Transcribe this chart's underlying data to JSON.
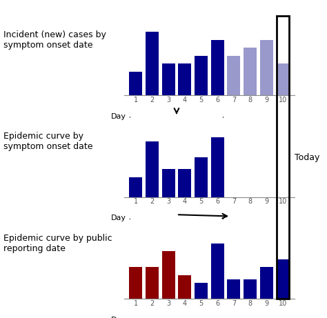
{
  "chart1": {
    "label": "Incident (new) cases by\nsymptom onset date",
    "days": [
      1,
      2,
      3,
      4,
      5,
      6,
      7,
      8,
      9,
      10
    ],
    "values": [
      3.0,
      8.0,
      4.0,
      4.0,
      5.0,
      7.0,
      5.0,
      6.0,
      7.0,
      4.0
    ],
    "dark_until": 6,
    "color_dark": "#00008B",
    "color_light": "#9999CC"
  },
  "chart2": {
    "label": "Epidemic curve by\nsymptom onset date",
    "days": [
      1,
      2,
      3,
      4,
      5,
      6,
      7,
      8,
      9,
      10
    ],
    "values": [
      2.5,
      7.0,
      3.5,
      3.5,
      5.0,
      7.5,
      0,
      0,
      0,
      0
    ],
    "color": "#00008B"
  },
  "chart3": {
    "label": "Epidemic curve by public\nreporting date",
    "days": [
      1,
      2,
      3,
      4,
      5,
      6,
      7,
      8,
      9,
      10
    ],
    "values": [
      4.0,
      4.0,
      6.0,
      3.0,
      2.0,
      7.0,
      2.5,
      2.5,
      4.0,
      5.0
    ],
    "red_until": 4,
    "color_red": "#8B0000",
    "color_blue": "#00008B"
  },
  "today_label": "Today",
  "background": "#FFFFFF"
}
